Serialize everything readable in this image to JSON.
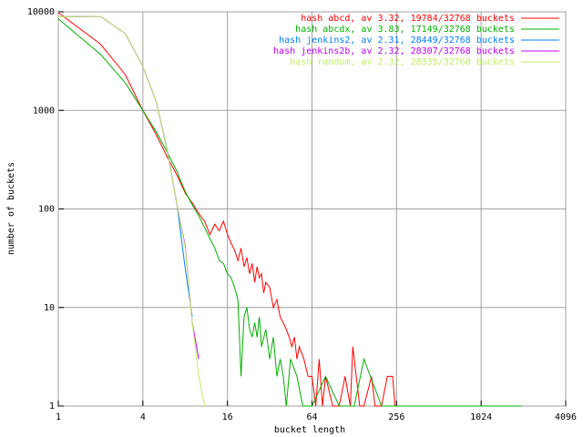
{
  "chart_data": {
    "type": "line",
    "x_label": "bucket length",
    "y_label": "number of buckets",
    "log_x": true,
    "log_y": true,
    "grid": true,
    "legend": "top-right",
    "xlim": [
      1,
      4096
    ],
    "xticks": [
      1,
      4,
      16,
      64,
      256,
      1024,
      4096
    ],
    "ylim": [
      1,
      10000
    ],
    "yticks": [
      1,
      10,
      100,
      1000,
      10000
    ],
    "series": [
      {
        "name": "hash abcd, av 3.32, 19784/32768 buckets",
        "color": "#ff0000",
        "x": [
          1,
          2,
          3,
          4,
          5,
          6,
          7,
          8,
          9,
          10,
          11,
          12,
          13,
          14,
          15,
          16,
          17,
          18,
          19,
          20,
          21,
          22,
          23,
          24,
          25,
          26,
          27,
          28,
          29,
          30,
          32,
          34,
          36,
          38,
          40,
          42,
          44,
          46,
          48,
          50,
          52,
          56,
          60,
          64,
          68,
          72,
          76,
          80,
          90,
          100,
          110,
          120,
          125,
          140,
          150,
          170,
          180,
          200,
          220,
          240,
          250,
          260
        ],
        "values": [
          9800,
          4700,
          2300,
          1000,
          560,
          330,
          220,
          145,
          115,
          90,
          75,
          55,
          70,
          60,
          75,
          55,
          45,
          38,
          30,
          40,
          26,
          32,
          22,
          28,
          18,
          26,
          20,
          22,
          14,
          18,
          16,
          10,
          12,
          8,
          7,
          6,
          5,
          4,
          5,
          3,
          4,
          3,
          2,
          2,
          1,
          3,
          1,
          2,
          1,
          1,
          2,
          1,
          4,
          1,
          1,
          2,
          1,
          1,
          2,
          2,
          1,
          1
        ]
      },
      {
        "name": "hash abcdx, av 3.83, 17149/32768 buckets",
        "color": "#00b000",
        "x": [
          1,
          2,
          3,
          4,
          5,
          6,
          7,
          8,
          9,
          10,
          11,
          12,
          13,
          14,
          15,
          16,
          17,
          18,
          19,
          20,
          21,
          22,
          23,
          24,
          25,
          26,
          27,
          28,
          30,
          32,
          34,
          36,
          38,
          40,
          42,
          45,
          50,
          55,
          64,
          80,
          100,
          128,
          150,
          200,
          256,
          300,
          400,
          512,
          800,
          1024,
          1500,
          2000
        ],
        "values": [
          8500,
          3700,
          1900,
          1000,
          600,
          370,
          240,
          150,
          110,
          85,
          65,
          50,
          40,
          30,
          28,
          22,
          20,
          16,
          12,
          2,
          8,
          10,
          6,
          5,
          7,
          5,
          8,
          4,
          6,
          3,
          5,
          2,
          3,
          2,
          1,
          3,
          2,
          1,
          1,
          2,
          1,
          1,
          3,
          1,
          1,
          1,
          1,
          1,
          1,
          1,
          1,
          1
        ]
      },
      {
        "name": "hash jenkins2, av 2.31, 28449/32768 buckets",
        "color": "#0080ff",
        "x": [
          1,
          2,
          3,
          4,
          5,
          6,
          7,
          8,
          9
        ],
        "values": [
          8900,
          9000,
          6000,
          2800,
          1200,
          380,
          110,
          25,
          8
        ]
      },
      {
        "name": "hash jenkins2b, av 2.32, 28307/32768 buckets",
        "color": "#c000ff",
        "x": [
          1,
          2,
          3,
          4,
          5,
          6,
          7,
          8,
          9,
          10
        ],
        "values": [
          8900,
          9000,
          6000,
          2800,
          1200,
          370,
          110,
          42,
          7,
          3
        ]
      },
      {
        "name": "hash random, av 2.32, 28335/32768 buckets",
        "color": "#c0f060",
        "x": [
          1,
          2,
          3,
          4,
          5,
          6,
          7,
          8,
          9,
          10,
          11
        ],
        "values": [
          8900,
          9000,
          6000,
          2800,
          1200,
          370,
          110,
          40,
          7,
          2,
          1
        ]
      }
    ]
  }
}
